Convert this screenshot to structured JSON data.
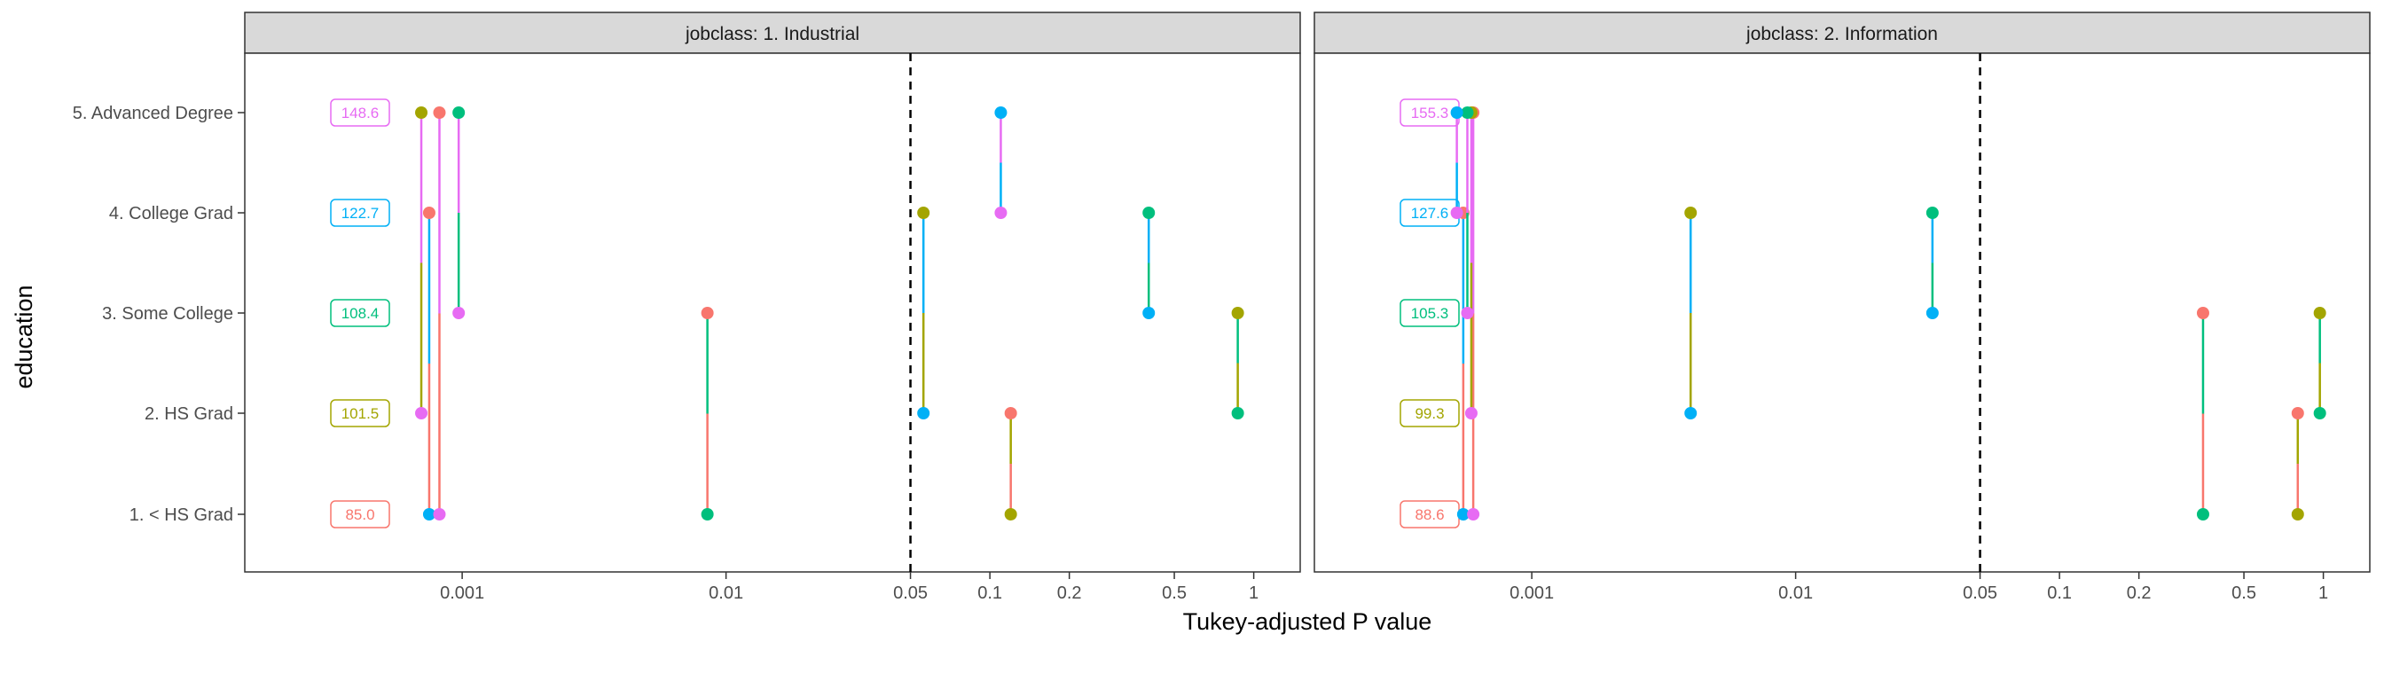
{
  "chart_data": {
    "type": "scatter",
    "xlabel": "Tukey-adjusted P value",
    "ylabel": "education",
    "x_scale": "log",
    "xlim": [
      0.00015,
      1.5
    ],
    "x_ticks": [
      {
        "value": 0.001,
        "label": "0.001"
      },
      {
        "value": 0.01,
        "label": "0.01"
      },
      {
        "value": 0.05,
        "label": "0.05"
      },
      {
        "value": 0.1,
        "label": "0.1"
      },
      {
        "value": 0.2,
        "label": "0.2"
      },
      {
        "value": 0.5,
        "label": "0.5"
      },
      {
        "value": 1,
        "label": "1"
      }
    ],
    "reference_line": 0.05,
    "categories": [
      "1. < HS Grad",
      "2. HS Grad",
      "3. Some College",
      "4. College Grad",
      "5. Advanced Degree"
    ],
    "colors": {
      "1. < HS Grad": "#F8766D",
      "2. HS Grad": "#A3A500",
      "3. Some College": "#00BF7D",
      "4. College Grad": "#00B0F6",
      "5. Advanced Degree": "#E76BF3"
    },
    "grid": false,
    "legend": "none",
    "panels": [
      {
        "strip": "jobclass: 1. Industrial",
        "means": [
          "85.0",
          "101.5",
          "108.4",
          "122.7",
          "148.6"
        ],
        "comparisons": [
          {
            "a": "1. < HS Grad",
            "b": "2. HS Grad",
            "p": 0.12
          },
          {
            "a": "1. < HS Grad",
            "b": "3. Some College",
            "p": 0.0085
          },
          {
            "a": "1. < HS Grad",
            "b": "4. College Grad",
            "p": 0.00075
          },
          {
            "a": "1. < HS Grad",
            "b": "5. Advanced Degree",
            "p": 0.00082
          },
          {
            "a": "2. HS Grad",
            "b": "3. Some College",
            "p": 0.87
          },
          {
            "a": "2. HS Grad",
            "b": "4. College Grad",
            "p": 0.056
          },
          {
            "a": "2. HS Grad",
            "b": "5. Advanced Degree",
            "p": 0.0007
          },
          {
            "a": "3. Some College",
            "b": "4. College Grad",
            "p": 0.4
          },
          {
            "a": "3. Some College",
            "b": "5. Advanced Degree",
            "p": 0.00097
          },
          {
            "a": "4. College Grad",
            "b": "5. Advanced Degree",
            "p": 0.11
          }
        ]
      },
      {
        "strip": "jobclass: 2. Information",
        "means": [
          "88.6",
          "99.3",
          "105.3",
          "127.6",
          "155.3"
        ],
        "comparisons": [
          {
            "a": "1. < HS Grad",
            "b": "2. HS Grad",
            "p": 0.8
          },
          {
            "a": "1. < HS Grad",
            "b": "3. Some College",
            "p": 0.35
          },
          {
            "a": "1. < HS Grad",
            "b": "4. College Grad",
            "p": 0.00055
          },
          {
            "a": "1. < HS Grad",
            "b": "5. Advanced Degree",
            "p": 0.0006
          },
          {
            "a": "2. HS Grad",
            "b": "3. Some College",
            "p": 0.97
          },
          {
            "a": "2. HS Grad",
            "b": "4. College Grad",
            "p": 0.004
          },
          {
            "a": "2. HS Grad",
            "b": "5. Advanced Degree",
            "p": 0.00059
          },
          {
            "a": "3. Some College",
            "b": "4. College Grad",
            "p": 0.033
          },
          {
            "a": "3. Some College",
            "b": "5. Advanced Degree",
            "p": 0.00057
          },
          {
            "a": "4. College Grad",
            "b": "5. Advanced Degree",
            "p": 0.00052
          }
        ]
      }
    ]
  }
}
